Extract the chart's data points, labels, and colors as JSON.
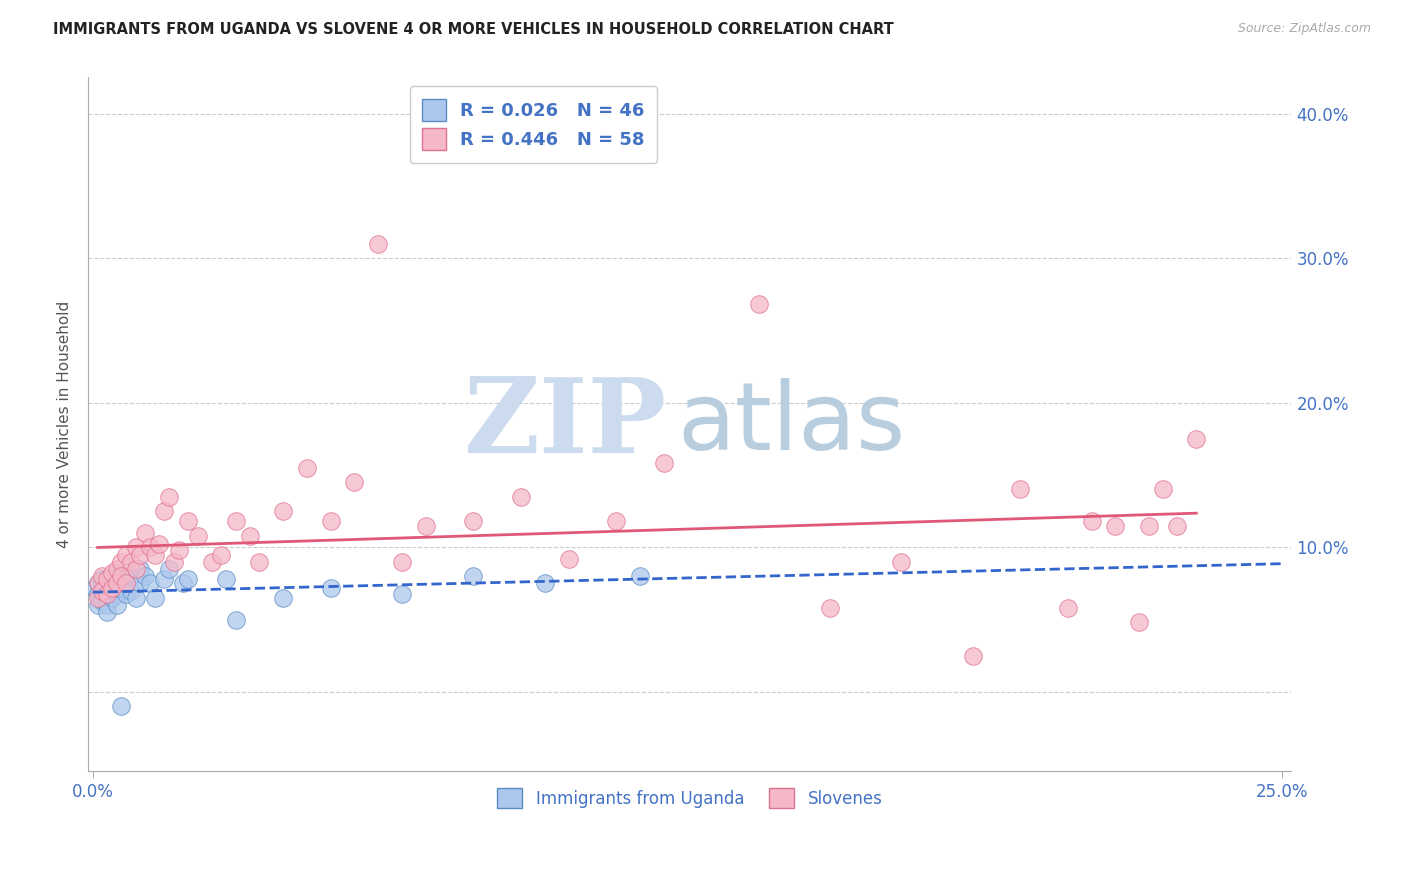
{
  "title": "IMMIGRANTS FROM UGANDA VS SLOVENE 4 OR MORE VEHICLES IN HOUSEHOLD CORRELATION CHART",
  "source": "Source: ZipAtlas.com",
  "ylabel": "4 or more Vehicles in Household",
  "xlim": [
    -0.001,
    0.252
  ],
  "ylim": [
    -0.055,
    0.425
  ],
  "yticks": [
    0.0,
    0.1,
    0.2,
    0.3,
    0.4
  ],
  "ytick_labels": [
    "",
    "10.0%",
    "20.0%",
    "30.0%",
    "40.0%"
  ],
  "xtick_positions": [
    0.0,
    0.25
  ],
  "xtick_labels": [
    "0.0%",
    "25.0%"
  ],
  "blue_R": 0.026,
  "blue_N": 46,
  "pink_R": 0.446,
  "pink_N": 58,
  "blue_scatter_color": "#adc8ed",
  "pink_scatter_color": "#f5b8c8",
  "blue_edge_color": "#5b8ec4",
  "pink_edge_color": "#e07090",
  "blue_line_color": "#3366cc",
  "pink_line_color": "#e05878",
  "blue_line_dashed": true,
  "legend_label_blue": "Immigrants from Uganda",
  "legend_label_pink": "Slovenes",
  "axis_label_color": "#4472c4",
  "title_color": "#222222",
  "grid_color": "#cccccc",
  "blue_x": [
    0.0005,
    0.001,
    0.001,
    0.001,
    0.002,
    0.002,
    0.002,
    0.002,
    0.002,
    0.003,
    0.003,
    0.003,
    0.003,
    0.004,
    0.004,
    0.004,
    0.005,
    0.005,
    0.005,
    0.005,
    0.006,
    0.006,
    0.006,
    0.007,
    0.007,
    0.007,
    0.008,
    0.008,
    0.009,
    0.01,
    0.01,
    0.011,
    0.012,
    0.013,
    0.015,
    0.016,
    0.019,
    0.02,
    0.028,
    0.03,
    0.04,
    0.05,
    0.065,
    0.08,
    0.095,
    0.115
  ],
  "blue_y": [
    0.072,
    0.06,
    0.075,
    0.068,
    0.07,
    0.065,
    0.078,
    0.072,
    0.063,
    0.078,
    0.068,
    0.06,
    0.055,
    0.078,
    0.072,
    0.065,
    0.082,
    0.075,
    0.068,
    0.06,
    0.08,
    0.072,
    -0.01,
    0.082,
    0.075,
    0.068,
    0.08,
    0.07,
    0.065,
    0.085,
    0.075,
    0.08,
    0.075,
    0.065,
    0.078,
    0.085,
    0.075,
    0.078,
    0.078,
    0.05,
    0.065,
    0.072,
    0.068,
    0.08,
    0.075,
    0.08
  ],
  "pink_x": [
    0.001,
    0.001,
    0.002,
    0.002,
    0.003,
    0.003,
    0.004,
    0.004,
    0.005,
    0.005,
    0.006,
    0.006,
    0.007,
    0.007,
    0.008,
    0.009,
    0.009,
    0.01,
    0.011,
    0.012,
    0.013,
    0.014,
    0.015,
    0.016,
    0.017,
    0.018,
    0.02,
    0.022,
    0.025,
    0.027,
    0.03,
    0.033,
    0.035,
    0.04,
    0.045,
    0.05,
    0.055,
    0.06,
    0.065,
    0.07,
    0.08,
    0.09,
    0.1,
    0.11,
    0.12,
    0.14,
    0.155,
    0.17,
    0.185,
    0.195,
    0.205,
    0.21,
    0.215,
    0.22,
    0.222,
    0.225,
    0.228,
    0.232
  ],
  "pink_y": [
    0.075,
    0.065,
    0.08,
    0.07,
    0.078,
    0.068,
    0.082,
    0.072,
    0.085,
    0.075,
    0.09,
    0.08,
    0.095,
    0.075,
    0.09,
    0.1,
    0.085,
    0.095,
    0.11,
    0.1,
    0.095,
    0.102,
    0.125,
    0.135,
    0.09,
    0.098,
    0.118,
    0.108,
    0.09,
    0.095,
    0.118,
    0.108,
    0.09,
    0.125,
    0.155,
    0.118,
    0.145,
    0.31,
    0.09,
    0.115,
    0.118,
    0.135,
    0.092,
    0.118,
    0.158,
    0.268,
    0.058,
    0.09,
    0.025,
    0.14,
    0.058,
    0.118,
    0.115,
    0.048,
    0.115,
    0.14,
    0.115,
    0.175
  ]
}
